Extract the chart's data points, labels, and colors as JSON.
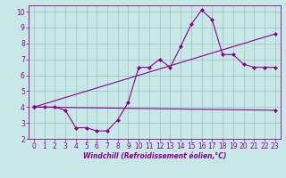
{
  "bg_color": "#c8e8e8",
  "line_color": "#8b008b",
  "grid_color": "#a0c0c0",
  "xlabel": "Windchill (Refroidissement éolien,°C)",
  "xlim": [
    -0.5,
    23.5
  ],
  "ylim": [
    2,
    10.4
  ],
  "xticks": [
    0,
    1,
    2,
    3,
    4,
    5,
    6,
    7,
    8,
    9,
    10,
    11,
    12,
    13,
    14,
    15,
    16,
    17,
    18,
    19,
    20,
    21,
    22,
    23
  ],
  "yticks": [
    2,
    3,
    4,
    5,
    6,
    7,
    8,
    9,
    10
  ],
  "line1_x": [
    0,
    1,
    2,
    3,
    4,
    5,
    6,
    7,
    8,
    9,
    10,
    11,
    12,
    13,
    14,
    15,
    16,
    17,
    18,
    19,
    20,
    21,
    22,
    23
  ],
  "line1_y": [
    4.0,
    4.0,
    4.0,
    3.8,
    2.7,
    2.7,
    2.5,
    2.5,
    3.2,
    4.3,
    6.5,
    6.5,
    7.0,
    6.5,
    7.8,
    9.2,
    10.1,
    9.5,
    7.3,
    7.3,
    6.7,
    6.5,
    6.5,
    6.5
  ],
  "line2_x": [
    0,
    23
  ],
  "line2_y": [
    4.0,
    3.8
  ],
  "line3_x": [
    0,
    23
  ],
  "line3_y": [
    4.0,
    8.6
  ],
  "marker": "D",
  "markersize": 2.0,
  "linewidth": 0.8,
  "tick_fontsize": 5.5,
  "xlabel_fontsize": 5.5
}
